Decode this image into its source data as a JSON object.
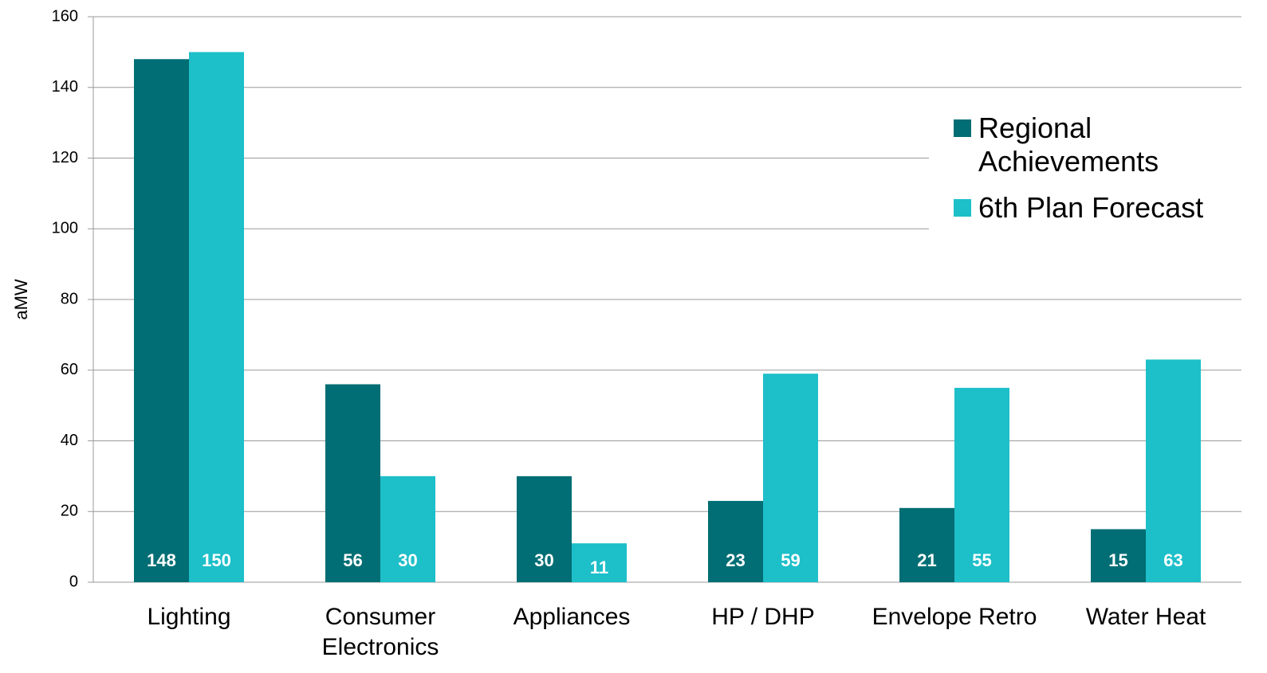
{
  "chart_data": {
    "type": "bar",
    "y_label": "aMW",
    "categories": [
      "Lighting",
      "Consumer Electronics",
      "Appliances",
      "HP / DHP",
      "Envelope Retro",
      "Water Heat"
    ],
    "series": [
      {
        "name": "Regional Achievements",
        "color": "#006e74",
        "values": [
          148,
          56,
          30,
          23,
          21,
          15
        ]
      },
      {
        "name": "6th Plan Forecast",
        "color": "#1dbfc9",
        "values": [
          150,
          30,
          11,
          59,
          55,
          63
        ]
      }
    ],
    "ylim": [
      0,
      160
    ],
    "yticks": [
      0,
      20,
      40,
      60,
      80,
      100,
      120,
      140,
      160
    ],
    "grid": true,
    "legend": "upper right"
  }
}
